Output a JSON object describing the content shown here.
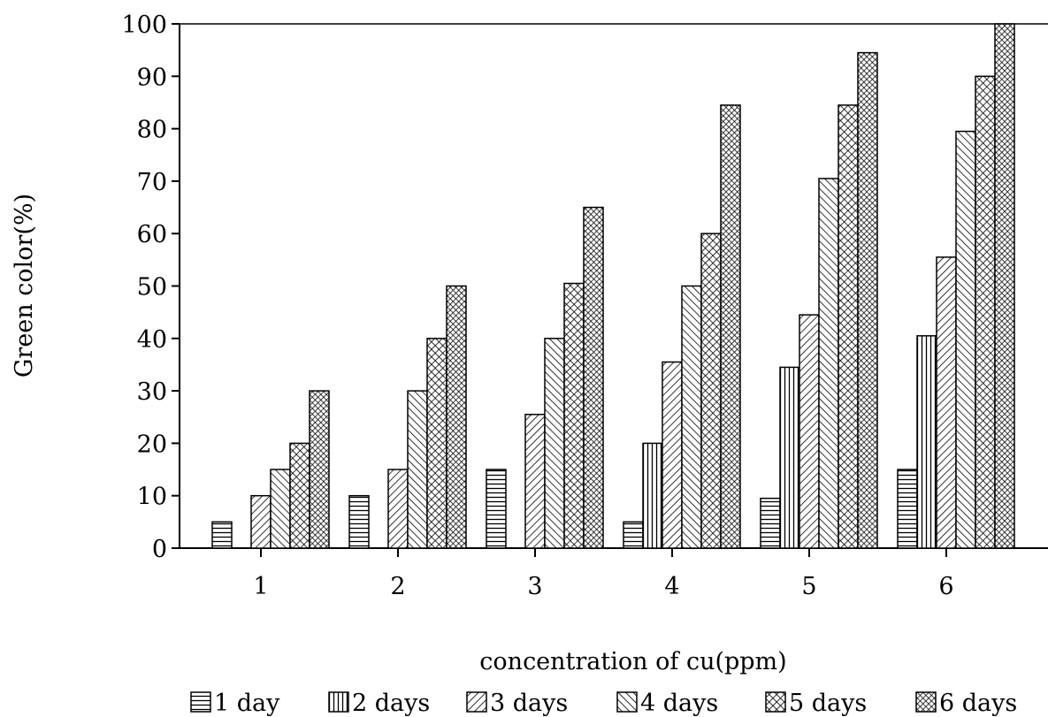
{
  "chart_data": {
    "type": "bar",
    "title": "",
    "xlabel": "concentration of cu(ppm)",
    "ylabel": "Green color(%)",
    "ylim": [
      0,
      100
    ],
    "yticks": [
      0,
      10,
      20,
      30,
      40,
      50,
      60,
      70,
      80,
      90,
      100
    ],
    "categories": [
      "1",
      "2",
      "3",
      "4",
      "5",
      "6"
    ],
    "grid": false,
    "legend_position": "bottom",
    "series": [
      {
        "name": "1 day",
        "pattern": "horizontal-lines",
        "values": [
          5,
          10,
          15,
          5,
          9.5,
          15
        ]
      },
      {
        "name": "2 days",
        "pattern": "vertical-lines",
        "values": [
          0,
          0,
          0,
          20,
          34.5,
          40.5
        ]
      },
      {
        "name": "3 days",
        "pattern": "diagonal-up",
        "values": [
          10,
          15,
          25.5,
          35.5,
          44.5,
          55.5
        ]
      },
      {
        "name": "4 days",
        "pattern": "diagonal-down",
        "values": [
          15,
          30,
          40,
          50,
          70.5,
          79.5
        ]
      },
      {
        "name": "5 days",
        "pattern": "crosshatch",
        "values": [
          20,
          40,
          50.5,
          60,
          84.5,
          90
        ]
      },
      {
        "name": "6 days",
        "pattern": "dense-crosshatch",
        "values": [
          30,
          50,
          65,
          84.5,
          94.5,
          100
        ]
      }
    ]
  }
}
